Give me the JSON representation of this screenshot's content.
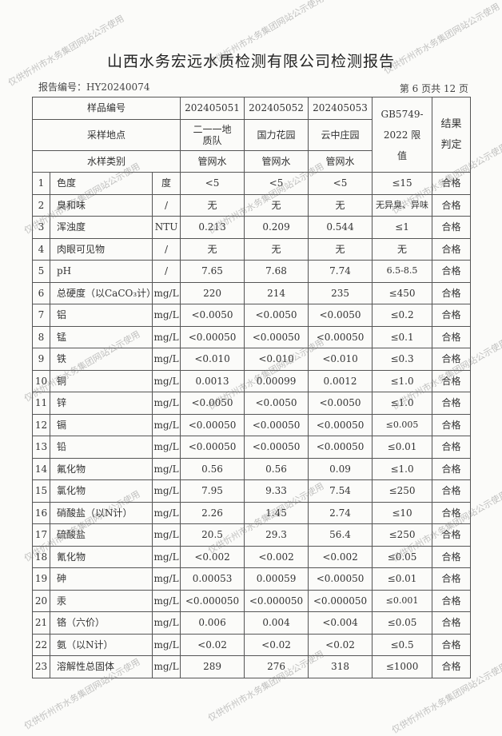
{
  "title": "山西水务宏远水质检测有限公司检测报告",
  "report_no": "报告编号：HY20240074",
  "page": "第 6 页共 12 页",
  "header": {
    "sample_no_label": "样品编号",
    "location_label": "采样地点",
    "type_label": "水样类别",
    "limit_label": "GB5749-2022 限值",
    "result_label": "结果判定",
    "samples": [
      {
        "no": "202405051",
        "location": "二一一地质队",
        "type": "管网水"
      },
      {
        "no": "202405052",
        "location": "国力花园",
        "type": "管网水"
      },
      {
        "no": "202405053",
        "location": "云中庄园",
        "type": "管网水"
      }
    ]
  },
  "rows": [
    {
      "n": "1",
      "item": "色度",
      "unit": "度",
      "v": [
        "<5",
        "<5",
        "<5"
      ],
      "limit": "≤15",
      "result": "合格"
    },
    {
      "n": "2",
      "item": "臭和味",
      "unit": "/",
      "v": [
        "无",
        "无",
        "无"
      ],
      "limit": "无异臭、异味",
      "result": "合格"
    },
    {
      "n": "3",
      "item": "浑浊度",
      "unit": "NTU",
      "v": [
        "0.213",
        "0.209",
        "0.544"
      ],
      "limit": "≤1",
      "result": "合格"
    },
    {
      "n": "4",
      "item": "肉眼可见物",
      "unit": "/",
      "v": [
        "无",
        "无",
        "无"
      ],
      "limit": "无",
      "result": "合格"
    },
    {
      "n": "5",
      "item": "pH",
      "unit": "/",
      "v": [
        "7.65",
        "7.68",
        "7.74"
      ],
      "limit": "6.5-8.5",
      "result": "合格"
    },
    {
      "n": "6",
      "item": "总硬度（以CaCO₃计）",
      "unit": "mg/L",
      "v": [
        "220",
        "214",
        "235"
      ],
      "limit": "≤450",
      "result": "合格"
    },
    {
      "n": "7",
      "item": "铝",
      "unit": "mg/L",
      "v": [
        "<0.0050",
        "<0.0050",
        "<0.0050"
      ],
      "limit": "≤0.2",
      "result": "合格"
    },
    {
      "n": "8",
      "item": "锰",
      "unit": "mg/L",
      "v": [
        "<0.00050",
        "<0.00050",
        "<0.00050"
      ],
      "limit": "≤0.1",
      "result": "合格"
    },
    {
      "n": "9",
      "item": "铁",
      "unit": "mg/L",
      "v": [
        "<0.010",
        "<0.010",
        "<0.010"
      ],
      "limit": "≤0.3",
      "result": "合格"
    },
    {
      "n": "10",
      "item": "铜",
      "unit": "mg/L",
      "v": [
        "0.0013",
        "0.00099",
        "0.0012"
      ],
      "limit": "≤1.0",
      "result": "合格"
    },
    {
      "n": "11",
      "item": "锌",
      "unit": "mg/L",
      "v": [
        "<0.0050",
        "<0.0050",
        "<0.0050"
      ],
      "limit": "≤1.0",
      "result": "合格"
    },
    {
      "n": "12",
      "item": "镉",
      "unit": "mg/L",
      "v": [
        "<0.00050",
        "<0.00050",
        "<0.00050"
      ],
      "limit": "≤0.005",
      "result": "合格"
    },
    {
      "n": "13",
      "item": "铅",
      "unit": "mg/L",
      "v": [
        "<0.00050",
        "<0.00050",
        "<0.00050"
      ],
      "limit": "≤0.01",
      "result": "合格"
    },
    {
      "n": "14",
      "item": "氟化物",
      "unit": "mg/L",
      "v": [
        "0.56",
        "0.56",
        "0.09"
      ],
      "limit": "≤1.0",
      "result": "合格"
    },
    {
      "n": "15",
      "item": "氯化物",
      "unit": "mg/L",
      "v": [
        "7.95",
        "9.33",
        "7.54"
      ],
      "limit": "≤250",
      "result": "合格"
    },
    {
      "n": "16",
      "item": "硝酸盐（以N计）",
      "unit": "mg/L",
      "v": [
        "2.26",
        "1.45",
        "2.74"
      ],
      "limit": "≤10",
      "result": "合格"
    },
    {
      "n": "17",
      "item": "硫酸盐",
      "unit": "mg/L",
      "v": [
        "20.5",
        "29.3",
        "56.4"
      ],
      "limit": "≤250",
      "result": "合格"
    },
    {
      "n": "18",
      "item": "氰化物",
      "unit": "mg/L",
      "v": [
        "<0.002",
        "<0.002",
        "<0.002"
      ],
      "limit": "≤0.05",
      "result": "合格"
    },
    {
      "n": "19",
      "item": "砷",
      "unit": "mg/L",
      "v": [
        "0.00053",
        "0.00059",
        "<0.00050"
      ],
      "limit": "≤0.01",
      "result": "合格"
    },
    {
      "n": "20",
      "item": "汞",
      "unit": "mg/L",
      "v": [
        "<0.000050",
        "<0.000050",
        "<0.000050"
      ],
      "limit": "≤0.001",
      "result": "合格"
    },
    {
      "n": "21",
      "item": "铬（六价）",
      "unit": "mg/L",
      "v": [
        "0.006",
        "0.004",
        "<0.004"
      ],
      "limit": "≤0.05",
      "result": "合格"
    },
    {
      "n": "22",
      "item": "氨（以N计）",
      "unit": "mg/L",
      "v": [
        "<0.02",
        "<0.02",
        "<0.02"
      ],
      "limit": "≤0.5",
      "result": "合格"
    },
    {
      "n": "23",
      "item": "溶解性总固体",
      "unit": "mg/L",
      "v": [
        "289",
        "276",
        "318"
      ],
      "limit": "≤1000",
      "result": "合格"
    }
  ],
  "watermark": "仅供忻州市水务集团网站公示使用"
}
